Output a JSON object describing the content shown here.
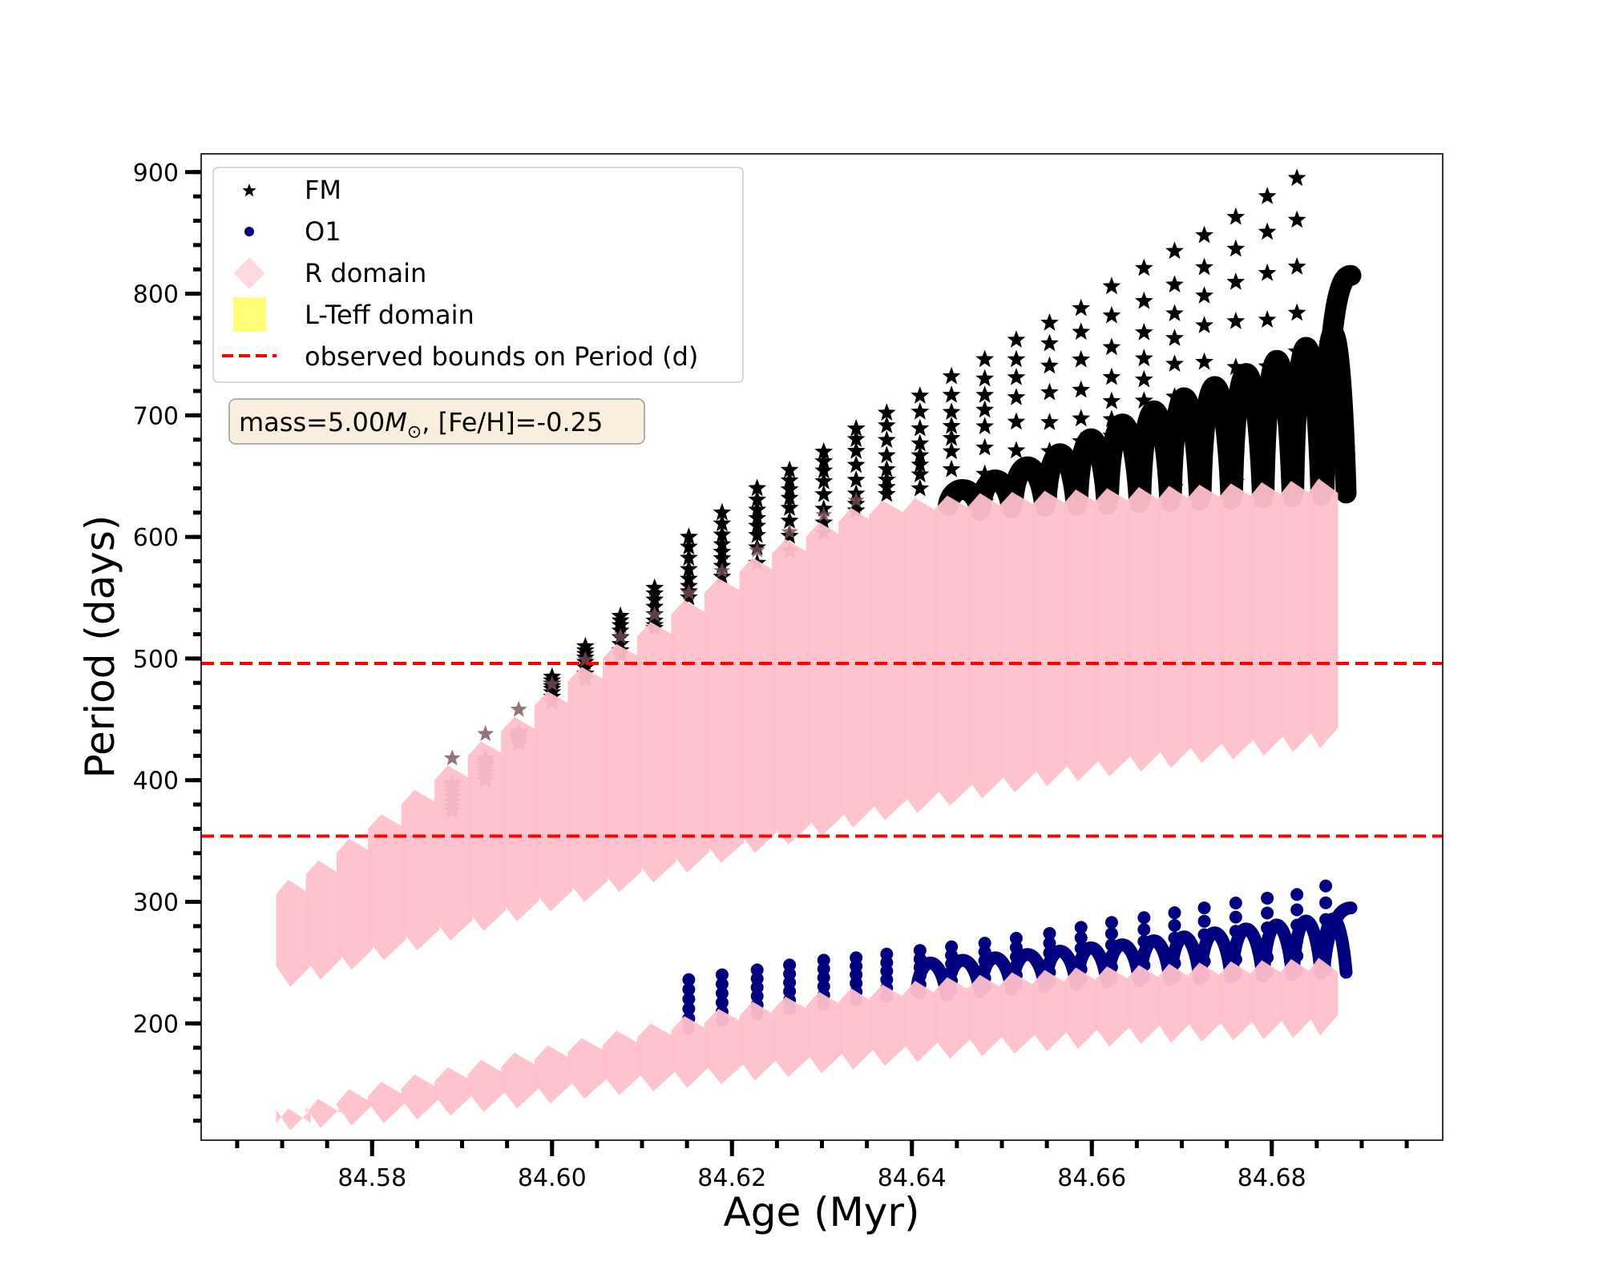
{
  "chart_data": {
    "type": "scatter",
    "title": "",
    "xlabel": "Age (Myr)",
    "ylabel": "Period (days)",
    "xlim": [
      84.561,
      84.699
    ],
    "ylim": [
      104,
      915
    ],
    "grid": false,
    "x_ticks": [
      84.58,
      84.6,
      84.62,
      84.64,
      84.66,
      84.68
    ],
    "x_tick_labels": [
      "84.58",
      "84.60",
      "84.62",
      "84.64",
      "84.66",
      "84.68"
    ],
    "x_minor_step": 0.005,
    "y_ticks": [
      200,
      300,
      400,
      500,
      600,
      700,
      800,
      900
    ],
    "y_tick_labels": [
      "200",
      "300",
      "400",
      "500",
      "600",
      "700",
      "800",
      "900"
    ],
    "y_minor_step": 20,
    "legend": {
      "placement": "top-left",
      "entries": [
        {
          "label": "FM",
          "marker": "star",
          "color": "#000000"
        },
        {
          "label": "O1",
          "marker": "circle",
          "color": "#000080"
        },
        {
          "label": "R domain",
          "marker": "diamond",
          "color": "#FFC0CB"
        },
        {
          "label": "L-Teff domain",
          "marker": "square",
          "color": "#FFFF66"
        },
        {
          "label": "observed bounds on Period (d)",
          "marker": "dashed-line",
          "color": "#FF0000"
        }
      ]
    },
    "annotation": {
      "text_prefix": "mass=5.00",
      "text_symbol": "M",
      "text_sub": "⊙",
      "text_suffix": ", [Fe/H]=-0.25",
      "background": "#FAEEDC"
    },
    "observed_bounds": [
      496,
      354
    ],
    "pulse_ages": [
      84.5713,
      84.5746,
      84.578,
      84.5815,
      84.5852,
      84.5889,
      84.5926,
      84.5963,
      84.6,
      84.6037,
      84.6076,
      84.6114,
      84.6152,
      84.6189,
      84.6228,
      84.6264,
      84.6302,
      84.6338,
      84.6372,
      84.6409,
      84.6444,
      84.6481,
      84.6516,
      84.6553,
      84.6588,
      84.6622,
      84.6658,
      84.6692,
      84.6725,
      84.676,
      84.6795,
      84.6828,
      84.686
    ],
    "series": [
      {
        "name": "FM",
        "marker": "star",
        "color": "#000000",
        "band_top": [
          318,
          334,
          352,
          372,
          392,
          412,
          432,
          452,
          473,
          493,
          512,
          530,
          548,
          566,
          583,
          598,
          612,
          624,
          630,
          632,
          634,
          636,
          637,
          638,
          639,
          640,
          641,
          642,
          643,
          644,
          645,
          646,
          648
        ],
        "band_bottom": [
          230,
          236,
          244,
          252,
          260,
          268,
          276,
          284,
          292,
          300,
          308,
          316,
          324,
          332,
          340,
          347,
          354,
          361,
          367,
          373,
          379,
          385,
          390,
          395,
          399,
          403,
          407,
          410,
          414,
          417,
          420,
          423,
          426
        ],
        "arc_peak": [
          null,
          null,
          null,
          null,
          null,
          null,
          null,
          null,
          null,
          null,
          null,
          null,
          null,
          null,
          null,
          null,
          null,
          null,
          null,
          null,
          636,
          646,
          660,
          674,
          690,
          706,
          720,
          734,
          746,
          760,
          774,
          788,
          802
        ],
        "spike_top": [
          null,
          null,
          null,
          null,
          null,
          375,
          400,
          430,
          485,
          510,
          535,
          558,
          600,
          620,
          640,
          655,
          670,
          689,
          702,
          716,
          732,
          746,
          762,
          776,
          788,
          806,
          821,
          835,
          848,
          863,
          880,
          895,
          null
        ],
        "arc_end": {
          "age": 84.6888,
          "period": 815
        }
      },
      {
        "name": "O1",
        "marker": "circle",
        "color": "#000080",
        "band_top": [
          130,
          138,
          146,
          152,
          158,
          164,
          170,
          176,
          182,
          188,
          194,
          200,
          206,
          212,
          218,
          222,
          226,
          229,
          232,
          235,
          238,
          240,
          242,
          244,
          246,
          247,
          248,
          249,
          250,
          251,
          252,
          253,
          254
        ],
        "band_bottom": [
          112,
          114,
          116,
          118,
          121,
          124,
          127,
          130,
          134,
          138,
          141,
          144,
          147,
          150,
          153,
          156,
          159,
          162,
          165,
          168,
          171,
          173,
          175,
          177,
          179,
          181,
          183,
          184,
          185,
          186,
          187,
          188,
          190
        ],
        "arc_peak": [
          null,
          null,
          null,
          null,
          null,
          null,
          null,
          null,
          null,
          null,
          null,
          null,
          null,
          null,
          null,
          null,
          null,
          null,
          null,
          250,
          252,
          254,
          257,
          260,
          263,
          266,
          270,
          274,
          278,
          282,
          286,
          290,
          292
        ],
        "spike_top": [
          null,
          null,
          null,
          null,
          null,
          null,
          null,
          null,
          null,
          null,
          null,
          null,
          236,
          240,
          244,
          248,
          252,
          254,
          257,
          260,
          263,
          266,
          270,
          274,
          279,
          283,
          287,
          291,
          295,
          299,
          303,
          306,
          313
        ],
        "arc_end": {
          "age": 84.6888,
          "period": 295
        }
      }
    ],
    "r_domain_color": "#FFC0CB",
    "bounds_color": "#FF0000"
  }
}
